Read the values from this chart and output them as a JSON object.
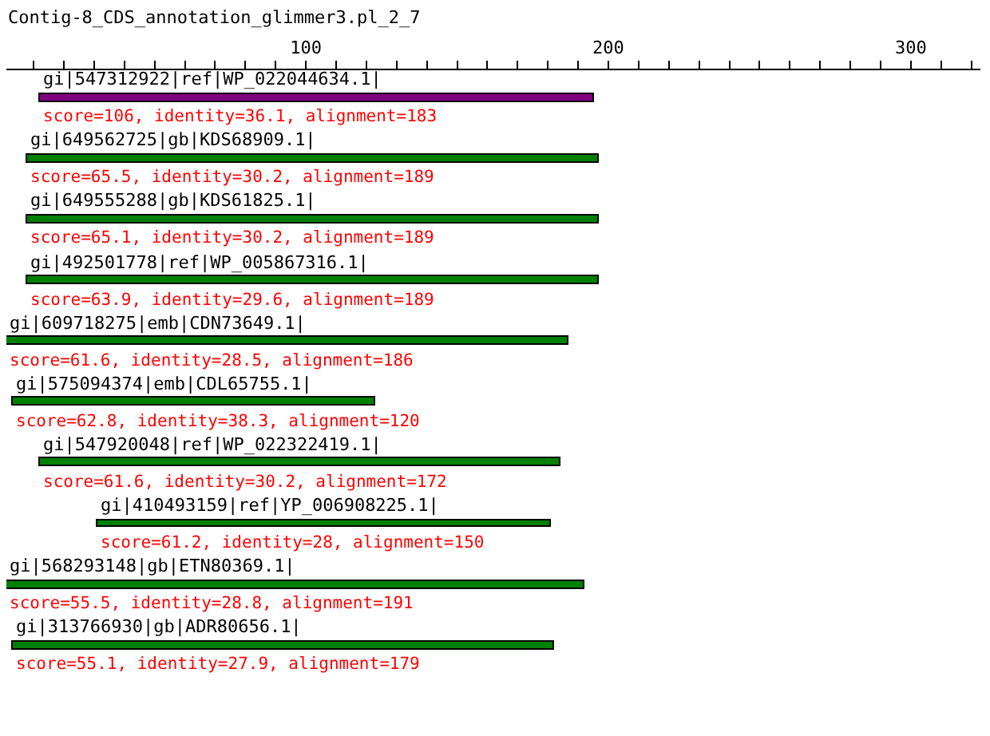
{
  "chart_data": {
    "type": "bar",
    "orientation": "horizontal",
    "title": "Contig-8_CDS_annotation_glimmer3.pl_2_7",
    "categories": [
      "gi|547312922|ref|WP_022044634.1|",
      "gi|649562725|gb|KDS68909.1|",
      "gi|649555288|gb|KDS61825.1|",
      "gi|492501778|ref|WP_005867316.1|",
      "gi|609718275|emb|CDN73649.1|",
      "gi|575094374|emb|CDL65755.1|",
      "gi|547920048|ref|WP_022322419.1|",
      "gi|410493159|ref|YP_006908225.1|",
      "gi|568293148|gb|ETN80369.1|",
      "gi|313766930|gb|ADR80656.1|"
    ],
    "base": [
      12,
      8,
      8,
      8,
      1,
      3,
      12,
      31,
      1,
      3
    ],
    "values": [
      183,
      189,
      189,
      189,
      186,
      120,
      172,
      150,
      191,
      179
    ],
    "colors": [
      "#800080",
      "#008000",
      "#008000",
      "#008000",
      "#008000",
      "#008000",
      "#008000",
      "#008000",
      "#008000",
      "#008000"
    ],
    "annotations": [
      "score=106, identity=36.1, alignment=183",
      "score=65.5, identity=30.2, alignment=189",
      "score=65.1, identity=30.2, alignment=189",
      "score=63.9, identity=29.6, alignment=189",
      "score=61.6, identity=28.5, alignment=186",
      "score=62.8, identity=38.3, alignment=120",
      "score=61.6, identity=30.2, alignment=172",
      "score=61.2, identity=28, alignment=150",
      "score=55.5, identity=28.8, alignment=191",
      "score=55.1, identity=27.9, alignment=179"
    ],
    "xlim": [
      1,
      323
    ],
    "xticks": [
      {
        "value": 10,
        "label": null
      },
      {
        "value": 20,
        "label": null
      },
      {
        "value": 30,
        "label": null
      },
      {
        "value": 40,
        "label": null
      },
      {
        "value": 50,
        "label": null
      },
      {
        "value": 60,
        "label": null
      },
      {
        "value": 70,
        "label": null
      },
      {
        "value": 80,
        "label": null
      },
      {
        "value": 90,
        "label": null
      },
      100,
      {
        "value": 110,
        "label": null
      },
      {
        "value": 120,
        "label": null
      },
      {
        "value": 130,
        "label": null
      },
      {
        "value": 140,
        "label": null
      },
      {
        "value": 150,
        "label": null
      },
      {
        "value": 160,
        "label": null
      },
      {
        "value": 170,
        "label": null
      },
      {
        "value": 180,
        "label": null
      },
      {
        "value": 190,
        "label": null
      },
      200,
      {
        "value": 210,
        "label": null
      },
      {
        "value": 220,
        "label": null
      },
      {
        "value": 230,
        "label": null
      },
      {
        "value": 240,
        "label": null
      },
      {
        "value": 250,
        "label": null
      },
      {
        "value": 260,
        "label": null
      },
      {
        "value": 270,
        "label": null
      },
      {
        "value": 280,
        "label": null
      },
      {
        "value": 290,
        "label": null
      },
      300,
      {
        "value": 310,
        "label": null
      },
      {
        "value": 320,
        "label": null
      }
    ],
    "tick_labels": "x",
    "grid": false,
    "legend": false
  }
}
